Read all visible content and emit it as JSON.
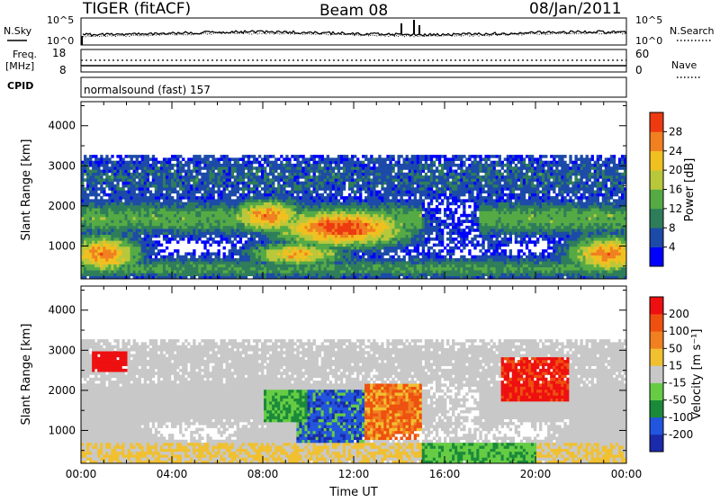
{
  "header": {
    "station": "TIGER (fitACF)",
    "beam": "Beam 08",
    "date": "08/Jan/2011"
  },
  "status_panels": {
    "nsky_label": "N.Sky",
    "nsearch_label": "N.Search",
    "noise_ticks": [
      "10^5",
      "10^0"
    ],
    "freq_label": "Freq.",
    "freq_unit": "[MHz]",
    "freq_ticks": [
      "18",
      "8"
    ],
    "nave_label": "Nave",
    "nave_ticks": [
      "60",
      "0"
    ],
    "cpid_label": "CPID",
    "cpid_value": "normalsound (fast) 157"
  },
  "chart_data": [
    {
      "type": "heatmap",
      "name": "power",
      "ylabel": "Slant Range [km]",
      "xlabel": "",
      "y_ticks": [
        1000,
        2000,
        3000,
        4000
      ],
      "ylim": [
        180,
        4600
      ],
      "x_ticks": [
        "00:00",
        "04:00",
        "08:00",
        "12:00",
        "16:00",
        "20:00",
        "00:00"
      ],
      "xlim_hours": [
        0,
        24
      ],
      "colorbar_label": "Power [dB]",
      "colorbar_ticks": [
        4,
        8,
        12,
        16,
        20,
        24,
        28
      ],
      "colorbar_range": [
        0,
        32
      ],
      "colorbar_colors": [
        "#0000ff",
        "#1c4aa8",
        "#2e7d5a",
        "#55aa44",
        "#b8c83a",
        "#f0c020",
        "#f08020",
        "#ee3a10"
      ]
    },
    {
      "type": "heatmap",
      "name": "velocity",
      "ylabel": "Slant Range [km]",
      "xlabel": "Time UT",
      "y_ticks": [
        1000,
        2000,
        3000,
        4000
      ],
      "ylim": [
        180,
        4600
      ],
      "x_ticks": [
        "00:00",
        "04:00",
        "08:00",
        "12:00",
        "16:00",
        "20:00",
        "00:00"
      ],
      "xlim_hours": [
        0,
        24
      ],
      "colorbar_label": "Velocity [m s⁻¹]",
      "colorbar_ticks": [
        "200",
        "100",
        "50",
        "15",
        "-15",
        "-50",
        "-100",
        "-200"
      ],
      "colorbar_colors": [
        "#1a2aaa",
        "#2255dd",
        "#1a8a3a",
        "#66cc44",
        "#c8c8c8",
        "#f0c030",
        "#f08020",
        "#ee5010",
        "#ee1010"
      ]
    }
  ]
}
